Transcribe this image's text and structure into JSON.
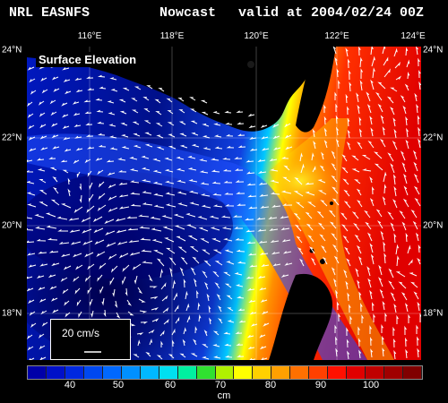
{
  "header": {
    "left": "NRL EASNFS",
    "middle": "Nowcast",
    "right": "valid at 2004/02/24 00Z"
  },
  "panel_label": "Surface Elevation",
  "axes": {
    "top_ticks": [
      "116°E",
      "118°E",
      "120°E",
      "122°E",
      "124°E"
    ],
    "left_ticks": [
      "24°N",
      "22°N",
      "20°N",
      "18°N"
    ],
    "right_ticks": [
      "24°N",
      "22°N",
      "20°N",
      "18°N"
    ]
  },
  "vector_legend": {
    "label": "20 cm/s"
  },
  "colorbar": {
    "labels": [
      "40",
      "50",
      "60",
      "70",
      "80",
      "90",
      "100"
    ],
    "unit": "cm",
    "colors": [
      "#0000a8",
      "#0010c8",
      "#0028e0",
      "#0048f0",
      "#0068ff",
      "#0090ff",
      "#00b8ff",
      "#00e0f0",
      "#00f0a0",
      "#30e030",
      "#b0f000",
      "#ffff00",
      "#ffd000",
      "#ffa000",
      "#ff7000",
      "#ff4000",
      "#ff1000",
      "#e00000",
      "#c00000",
      "#a00000",
      "#800000"
    ]
  },
  "colors": {
    "land": "#000000",
    "deep": "#00007a",
    "mid": "#2040ff",
    "warm": "#ff3000",
    "vectors": "#ffffff"
  }
}
